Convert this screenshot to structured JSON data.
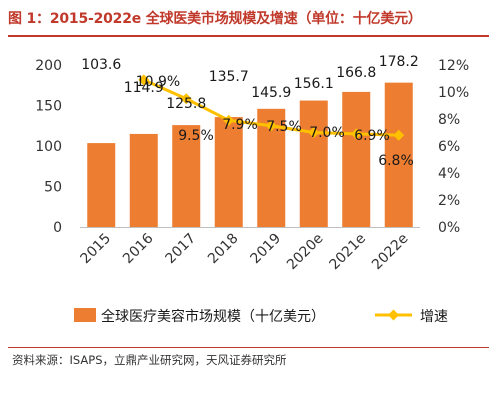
{
  "title": "图 1：2015-2022e 全球医美市场规模及增速（单位：十亿美元）",
  "source": "资料来源：ISAPS，立鼎产业研究网，天风证券研究所",
  "chart_data": {
    "type": "bar",
    "categories": [
      "2015",
      "2016",
      "2017",
      "2018",
      "2019",
      "2020e",
      "2021e",
      "2022e"
    ],
    "series": [
      {
        "name": "全球医疗美容市场规模（十亿美元）",
        "type": "bar",
        "axis": "left",
        "values": [
          103.6,
          114.9,
          125.8,
          135.7,
          145.9,
          156.1,
          166.8,
          178.2
        ],
        "labels": [
          "103.6",
          "114.9",
          "125.8",
          "135.7",
          "145.9",
          "156.1",
          "166.8",
          "178.2"
        ],
        "color": "#ED7D31"
      },
      {
        "name": "增速",
        "type": "line",
        "axis": "right",
        "values": [
          null,
          10.9,
          9.5,
          7.9,
          7.5,
          7.0,
          6.9,
          6.8
        ],
        "labels": [
          "",
          "10.9%",
          "9.5%",
          "7.9%",
          "7.5%",
          "7.0%",
          "6.9%",
          "6.8%"
        ],
        "color": "#FFC000"
      }
    ],
    "y_left": {
      "min": 0,
      "max": 200,
      "ticks": [
        0,
        50,
        100,
        150,
        200
      ]
    },
    "y_right": {
      "min": 0,
      "max": 12,
      "ticks": [
        "0%",
        "2%",
        "4%",
        "6%",
        "8%",
        "10%",
        "12%"
      ]
    },
    "grid": false,
    "legend": "bottom"
  }
}
